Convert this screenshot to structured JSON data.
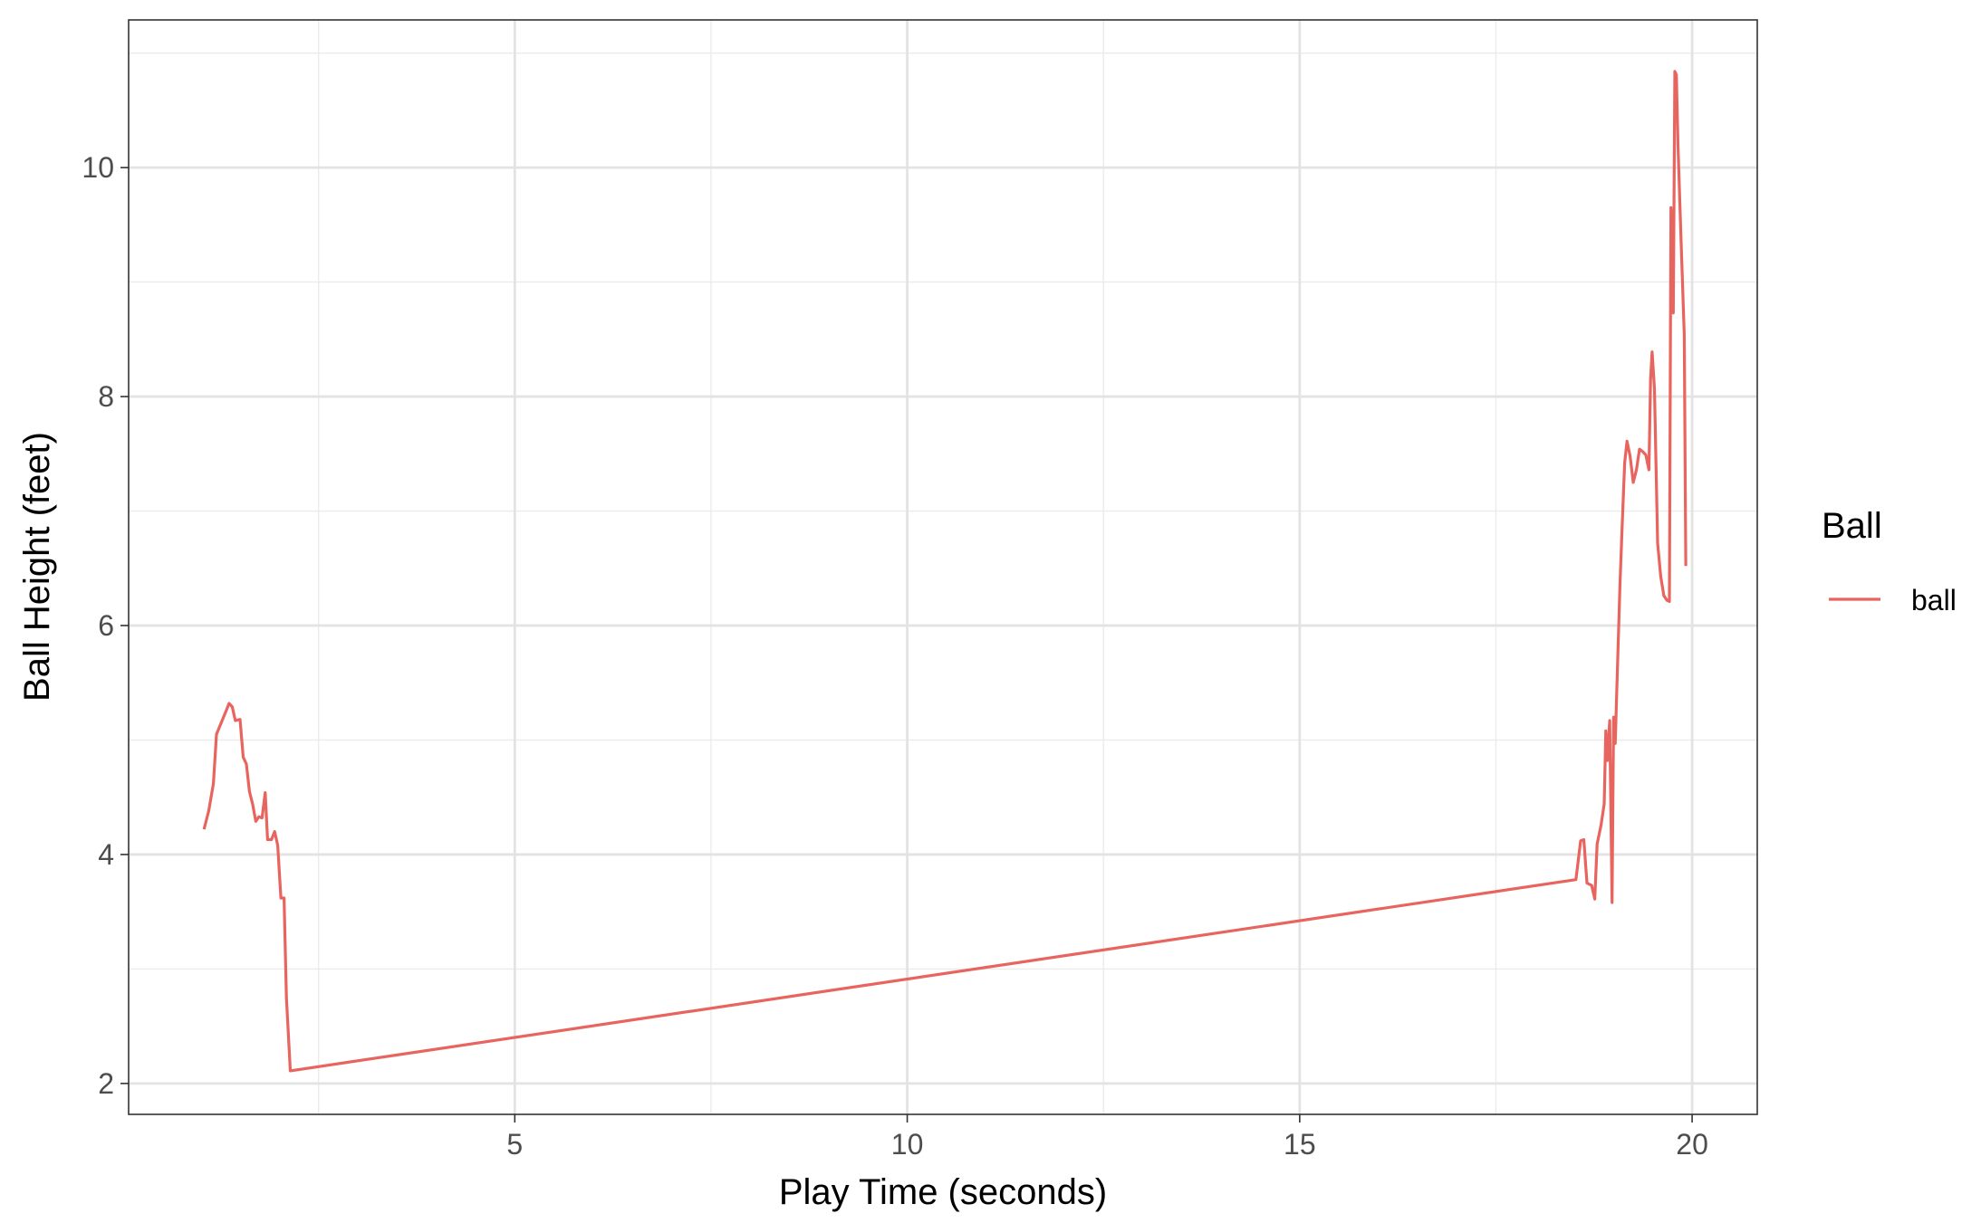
{
  "chart_data": {
    "type": "line",
    "xlabel": "Play Time (seconds)",
    "ylabel": "Ball Height (feet)",
    "xlim": [
      0.08,
      20.83
    ],
    "ylim": [
      1.73,
      11.29
    ],
    "x_ticks": [
      5,
      10,
      15,
      20
    ],
    "y_ticks": [
      2,
      4,
      6,
      8,
      10
    ],
    "x_tick_labels": [
      "5",
      "10",
      "15",
      "20"
    ],
    "y_tick_labels": [
      "2",
      "4",
      "6",
      "8",
      "10"
    ],
    "grid": true,
    "legend": {
      "title": "Ball",
      "position": "right"
    },
    "series": [
      {
        "name": "ball",
        "color": "#E8645E",
        "points": [
          [
            1.04,
            4.22
          ],
          [
            1.1,
            4.38
          ],
          [
            1.16,
            4.62
          ],
          [
            1.2,
            5.05
          ],
          [
            1.26,
            5.15
          ],
          [
            1.32,
            5.25
          ],
          [
            1.36,
            5.32
          ],
          [
            1.4,
            5.29
          ],
          [
            1.44,
            5.17
          ],
          [
            1.5,
            5.18
          ],
          [
            1.54,
            4.85
          ],
          [
            1.58,
            4.79
          ],
          [
            1.62,
            4.55
          ],
          [
            1.66,
            4.44
          ],
          [
            1.7,
            4.29
          ],
          [
            1.74,
            4.33
          ],
          [
            1.78,
            4.32
          ],
          [
            1.82,
            4.54
          ],
          [
            1.85,
            4.13
          ],
          [
            1.9,
            4.13
          ],
          [
            1.94,
            4.2
          ],
          [
            1.98,
            4.08
          ],
          [
            2.02,
            3.62
          ],
          [
            2.06,
            3.62
          ],
          [
            2.09,
            2.75
          ],
          [
            2.14,
            2.11
          ],
          [
            18.52,
            3.78
          ],
          [
            18.58,
            4.12
          ],
          [
            18.62,
            4.13
          ],
          [
            18.66,
            3.75
          ],
          [
            18.72,
            3.73
          ],
          [
            18.76,
            3.61
          ],
          [
            18.79,
            4.09
          ],
          [
            18.84,
            4.26
          ],
          [
            18.88,
            4.44
          ],
          [
            18.9,
            5.08
          ],
          [
            18.92,
            4.82
          ],
          [
            18.95,
            5.17
          ],
          [
            18.98,
            3.58
          ],
          [
            19.0,
            5.2
          ],
          [
            19.02,
            4.97
          ],
          [
            19.04,
            5.43
          ],
          [
            19.08,
            6.35
          ],
          [
            19.11,
            6.9
          ],
          [
            19.14,
            7.42
          ],
          [
            19.17,
            7.61
          ],
          [
            19.21,
            7.48
          ],
          [
            19.25,
            7.25
          ],
          [
            19.29,
            7.36
          ],
          [
            19.33,
            7.54
          ],
          [
            19.37,
            7.52
          ],
          [
            19.41,
            7.49
          ],
          [
            19.45,
            7.36
          ],
          [
            19.47,
            8.15
          ],
          [
            19.49,
            8.39
          ],
          [
            19.52,
            8.07
          ],
          [
            19.56,
            6.72
          ],
          [
            19.6,
            6.43
          ],
          [
            19.64,
            6.26
          ],
          [
            19.68,
            6.22
          ],
          [
            19.71,
            6.21
          ],
          [
            19.73,
            9.65
          ],
          [
            19.76,
            8.73
          ],
          [
            19.78,
            10.84
          ],
          [
            19.8,
            10.81
          ],
          [
            19.82,
            10.19
          ],
          [
            19.86,
            9.36
          ],
          [
            19.9,
            8.54
          ],
          [
            19.92,
            6.52
          ]
        ]
      }
    ]
  }
}
